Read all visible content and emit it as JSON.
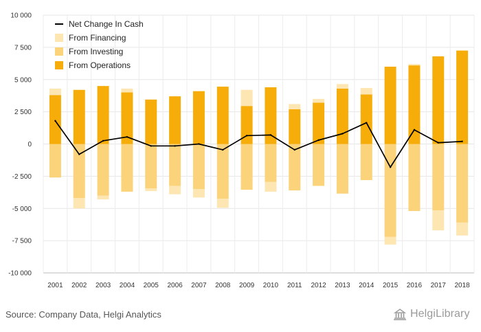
{
  "chart_data": {
    "type": "bar",
    "stacked": true,
    "categories": [
      "2001",
      "2002",
      "2003",
      "2004",
      "2005",
      "2006",
      "2007",
      "2008",
      "2009",
      "2010",
      "2011",
      "2012",
      "2013",
      "2014",
      "2015",
      "2016",
      "2017",
      "2018"
    ],
    "series": [
      {
        "name": "From Operations",
        "type": "bar",
        "color": "#f6ad09",
        "values": [
          3800,
          4200,
          4500,
          4000,
          3450,
          3700,
          4100,
          4450,
          2950,
          4400,
          2700,
          3200,
          4300,
          3850,
          6000,
          6100,
          6800,
          7250
        ]
      },
      {
        "name": "From Investing",
        "type": "bar",
        "color": "#fbd37a",
        "values": [
          -2600,
          -4200,
          -4000,
          -3700,
          -3450,
          -3250,
          -3500,
          -4250,
          -3550,
          -2950,
          -3600,
          -3250,
          -3850,
          -2800,
          -7200,
          -5200,
          -5150,
          -6100
        ]
      },
      {
        "name": "From Financing",
        "type": "bar",
        "color": "#fde6b2",
        "values": [
          500,
          -800,
          -300,
          300,
          -200,
          -650,
          -650,
          -700,
          1250,
          -750,
          400,
          300,
          350,
          500,
          -600,
          100,
          -1550,
          -1000
        ]
      },
      {
        "name": "Net Change In Cash",
        "type": "line",
        "color": "#000000",
        "values": [
          1800,
          -800,
          250,
          550,
          -150,
          -150,
          0,
          -450,
          650,
          700,
          -450,
          300,
          800,
          1650,
          -1800,
          1100,
          100,
          200
        ]
      }
    ],
    "ylim": [
      -10000,
      10000
    ],
    "yticks": [
      -10000,
      -7500,
      -5000,
      -2500,
      0,
      2500,
      5000,
      7500,
      10000
    ],
    "ytick_labels": [
      "-10 000",
      "-7 500",
      "-5 000",
      "-2 500",
      "0",
      "2 500",
      "5 000",
      "7 500",
      "10 000"
    ],
    "grid": true,
    "legend_position": "top-left"
  },
  "legend": [
    {
      "label": "Net Change In Cash",
      "swatch": "line",
      "color": "#000000"
    },
    {
      "label": "From Financing",
      "swatch": "box",
      "color": "#fde6b2"
    },
    {
      "label": "From Investing",
      "swatch": "box",
      "color": "#fbd37a"
    },
    {
      "label": "From Operations",
      "swatch": "box",
      "color": "#f6ad09"
    }
  ],
  "footer": {
    "source": "Source: Company Data, Helgi Analytics",
    "brand": "HelgiLibrary",
    "brand_icon": "building-icon"
  }
}
